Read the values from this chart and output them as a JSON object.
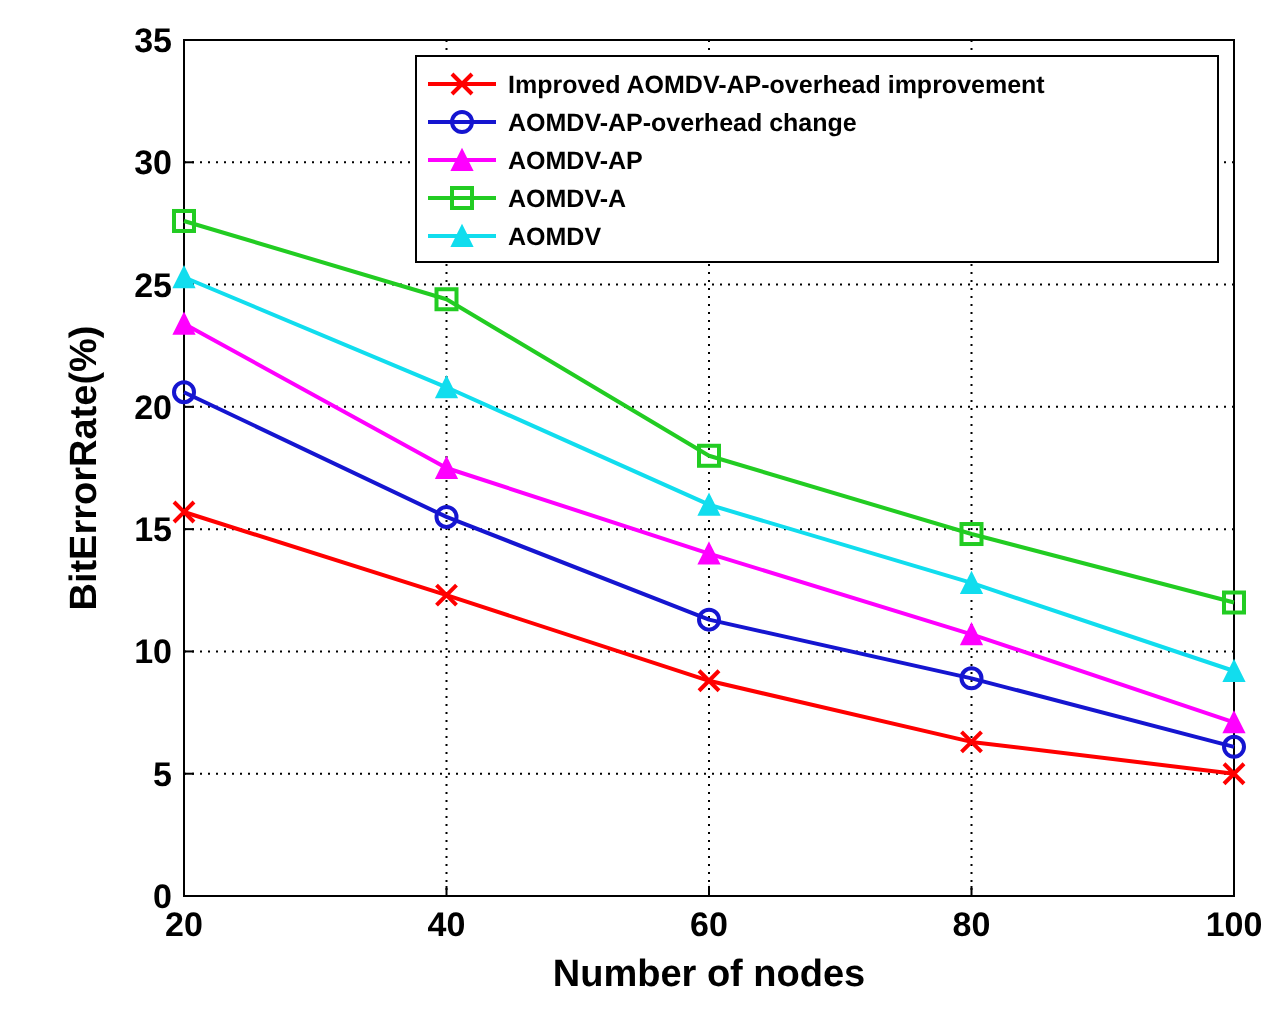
{
  "chart_data": {
    "type": "line",
    "xlabel": "Number of nodes",
    "ylabel": "BitErrorRate(%)",
    "x": [
      20,
      40,
      60,
      80,
      100
    ],
    "xlim": [
      20,
      100
    ],
    "xticks": [
      20,
      40,
      60,
      80,
      100
    ],
    "ylim": [
      0,
      35
    ],
    "yticks": [
      0,
      5,
      10,
      15,
      20,
      25,
      30,
      35
    ],
    "grid": true,
    "legend": "top right",
    "series": [
      {
        "name": "Improved AOMDV-AP-overhead improvement",
        "color": "#ff0000",
        "marker": "cross",
        "values": [
          15.7,
          12.3,
          8.8,
          6.3,
          5.0
        ]
      },
      {
        "name": "AOMDV-AP-overhead change",
        "color": "#1515d0",
        "marker": "circle",
        "values": [
          20.6,
          15.5,
          11.3,
          8.9,
          6.1
        ]
      },
      {
        "name": "AOMDV-AP",
        "color": "#ff00ff",
        "marker": "triangle",
        "values": [
          23.4,
          17.5,
          14.0,
          10.7,
          7.1
        ]
      },
      {
        "name": "AOMDV-A",
        "color": "#22cc22",
        "marker": "square",
        "values": [
          27.6,
          24.4,
          18.0,
          14.8,
          12.0
        ]
      },
      {
        "name": "AOMDV",
        "color": "#11ddee",
        "marker": "triangle",
        "values": [
          25.3,
          20.8,
          16.0,
          12.8,
          9.2
        ]
      }
    ]
  }
}
